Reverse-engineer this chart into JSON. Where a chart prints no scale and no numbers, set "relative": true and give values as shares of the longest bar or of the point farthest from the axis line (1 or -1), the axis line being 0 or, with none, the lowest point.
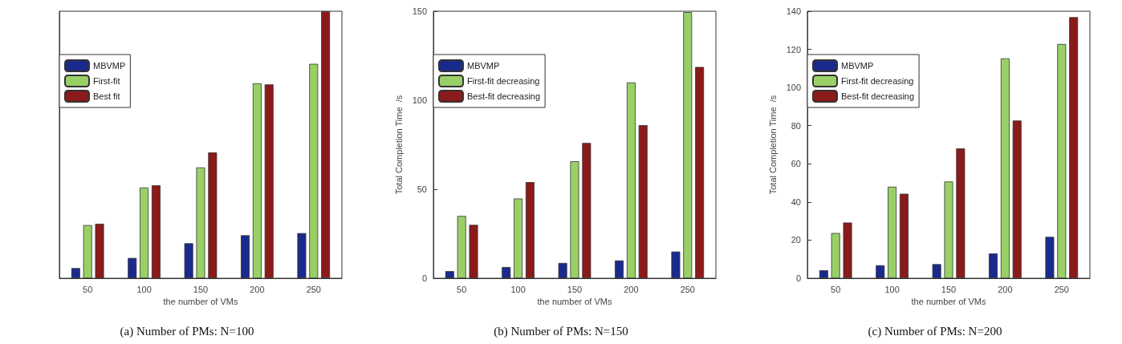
{
  "chart_data": [
    {
      "type": "bar",
      "title": "(a) Number of PMs: N=100",
      "xlabel": "the number of VMs",
      "categories": [
        "50",
        "100",
        "150",
        "200",
        "250"
      ],
      "relative": true,
      "tick_labels": "x",
      "legend": "top left",
      "grid": false,
      "series": [
        {
          "name": "MBVMP",
          "color": "#1a2a8c",
          "values": [
            0.038,
            0.076,
            0.131,
            0.161,
            0.169
          ]
        },
        {
          "name": "First-fit",
          "color": "#99d066",
          "values": [
            0.199,
            0.34,
            0.415,
            0.73,
            0.803
          ]
        },
        {
          "name": "Best fit",
          "color": "#8b1a1a",
          "values": [
            0.204,
            0.348,
            0.471,
            0.726,
            1
          ]
        }
      ]
    },
    {
      "type": "bar",
      "title": "(b) Number of PMs: N=150",
      "xlabel": "the number of VMs",
      "ylabel": "Total Completion Time  /s",
      "categories": [
        "50",
        "100",
        "150",
        "200",
        "250"
      ],
      "ylim": [
        0,
        150
      ],
      "yticks": [
        0,
        50,
        100,
        150
      ],
      "legend": "top left",
      "grid": false,
      "series": [
        {
          "name": "MBVMP",
          "color": "#1a2a8c",
          "values": [
            4,
            6.3,
            8.6,
            10,
            15
          ]
        },
        {
          "name": "First-fit decreasing",
          "color": "#99d066",
          "values": [
            35,
            44.8,
            65.7,
            110,
            149.5
          ]
        },
        {
          "name": "Best-fit decreasing",
          "color": "#8b1a1a",
          "values": [
            30,
            54,
            76,
            86,
            118.7
          ]
        }
      ]
    },
    {
      "type": "bar",
      "title": "(c) Number of PMs: N=200",
      "xlabel": "the number of VMs",
      "ylabel": "Total Completion Time  /s",
      "categories": [
        "50",
        "100",
        "150",
        "200",
        "250"
      ],
      "ylim": [
        0,
        140
      ],
      "yticks": [
        0,
        20,
        40,
        60,
        80,
        100,
        120,
        140
      ],
      "legend": "top left",
      "grid": false,
      "series": [
        {
          "name": "MBVMP",
          "color": "#1a2a8c",
          "values": [
            4.2,
            6.8,
            7.4,
            13,
            21.7
          ]
        },
        {
          "name": "First-fit decreasing",
          "color": "#99d066",
          "values": [
            23.7,
            48,
            50.7,
            115.3,
            122.8
          ]
        },
        {
          "name": "Best-fit decreasing",
          "color": "#8b1a1a",
          "values": [
            29.2,
            44.3,
            68.1,
            82.7,
            136.9
          ]
        }
      ]
    }
  ]
}
